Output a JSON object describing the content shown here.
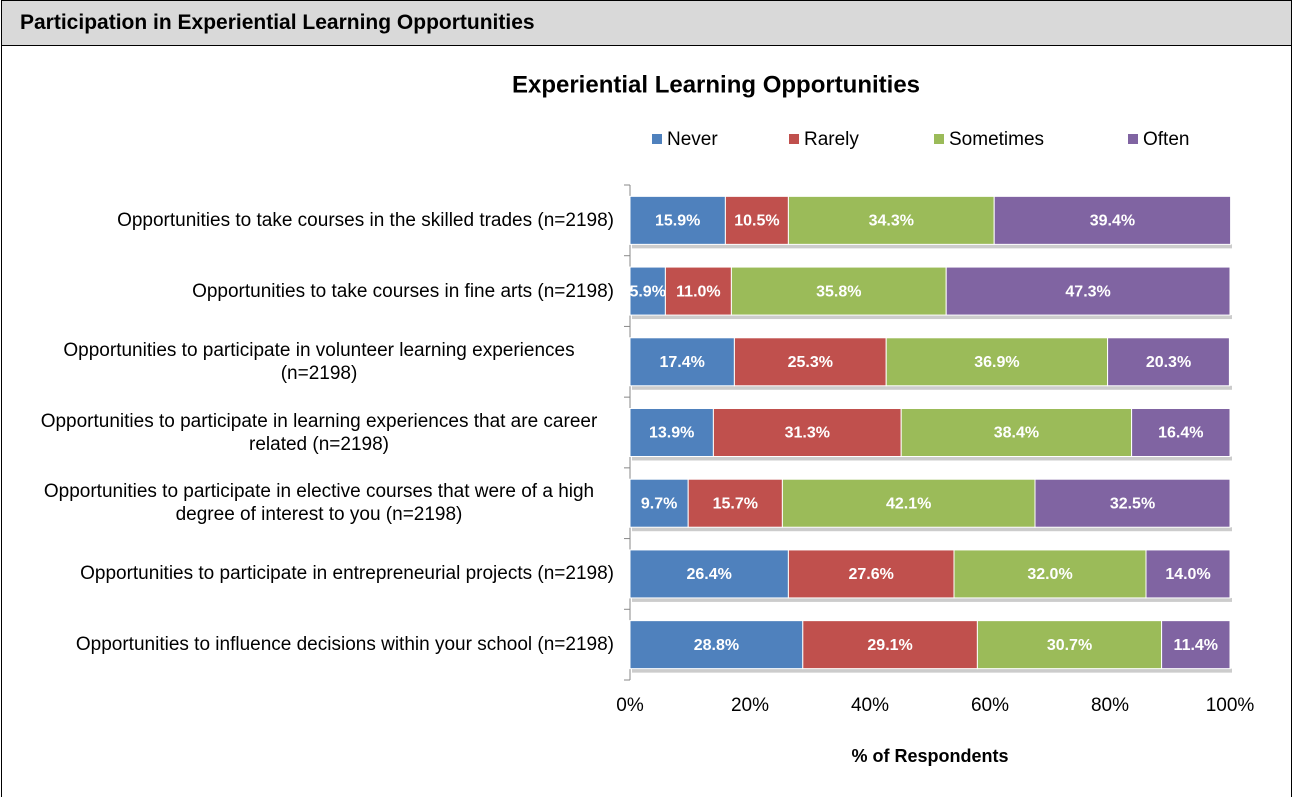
{
  "header": {
    "title": "Participation in Experiential Learning Opportunities"
  },
  "chart_data": {
    "type": "stacked_barh",
    "title": "Experiential Learning Opportunities",
    "xlabel": "% of Respondents",
    "categories": [
      "Opportunities to take courses in the skilled trades (n=2198)",
      "Opportunities to take courses in fine arts (n=2198)",
      "Opportunities to participate in volunteer learning experiences (n=2198)",
      "Opportunities to participate in learning experiences that are career related (n=2198)",
      "Opportunities to participate in elective courses that were of a high degree of interest to you (n=2198)",
      "Opportunities to participate in entrepreneurial projects (n=2198)",
      "Opportunities to influence decisions within your school (n=2198)"
    ],
    "series": [
      {
        "name": "Never",
        "color": "#4f81bd",
        "values": [
          15.9,
          5.9,
          17.4,
          13.9,
          9.7,
          26.4,
          28.8
        ],
        "value_labels": [
          "15.9%",
          "5.9%",
          "17.4%",
          "13.9%",
          "9.7%",
          "26.4%",
          "28.8%"
        ]
      },
      {
        "name": "Rarely",
        "color": "#c0504d",
        "values": [
          10.5,
          11.0,
          25.3,
          31.3,
          15.7,
          27.6,
          29.1
        ],
        "value_labels": [
          "10.5%",
          "11.0%",
          "25.3%",
          "31.3%",
          "15.7%",
          "27.6%",
          "29.1%"
        ]
      },
      {
        "name": "Sometimes",
        "color": "#9bbb59",
        "values": [
          34.3,
          35.8,
          36.9,
          38.4,
          42.1,
          32.0,
          30.7
        ],
        "value_labels": [
          "34.3%",
          "35.8%",
          "36.9%",
          "38.4%",
          "42.1%",
          "32.0%",
          "30.7%"
        ]
      },
      {
        "name": "Often",
        "color": "#8064a2",
        "values": [
          39.4,
          47.3,
          20.3,
          16.4,
          32.5,
          14.0,
          11.4
        ],
        "value_labels": [
          "39.4%",
          "47.3%",
          "20.3%",
          "16.4%",
          "32.5%",
          "14.0%",
          "11.4%"
        ]
      }
    ],
    "xlim": [
      0,
      100
    ],
    "xticks": [
      {
        "value": 0,
        "label": "0%"
      },
      {
        "value": 20,
        "label": "20%"
      },
      {
        "value": 40,
        "label": "40%"
      },
      {
        "value": 60,
        "label": "60%"
      },
      {
        "value": 80,
        "label": "80%"
      },
      {
        "value": 100,
        "label": "100%"
      }
    ],
    "legend": "top"
  }
}
